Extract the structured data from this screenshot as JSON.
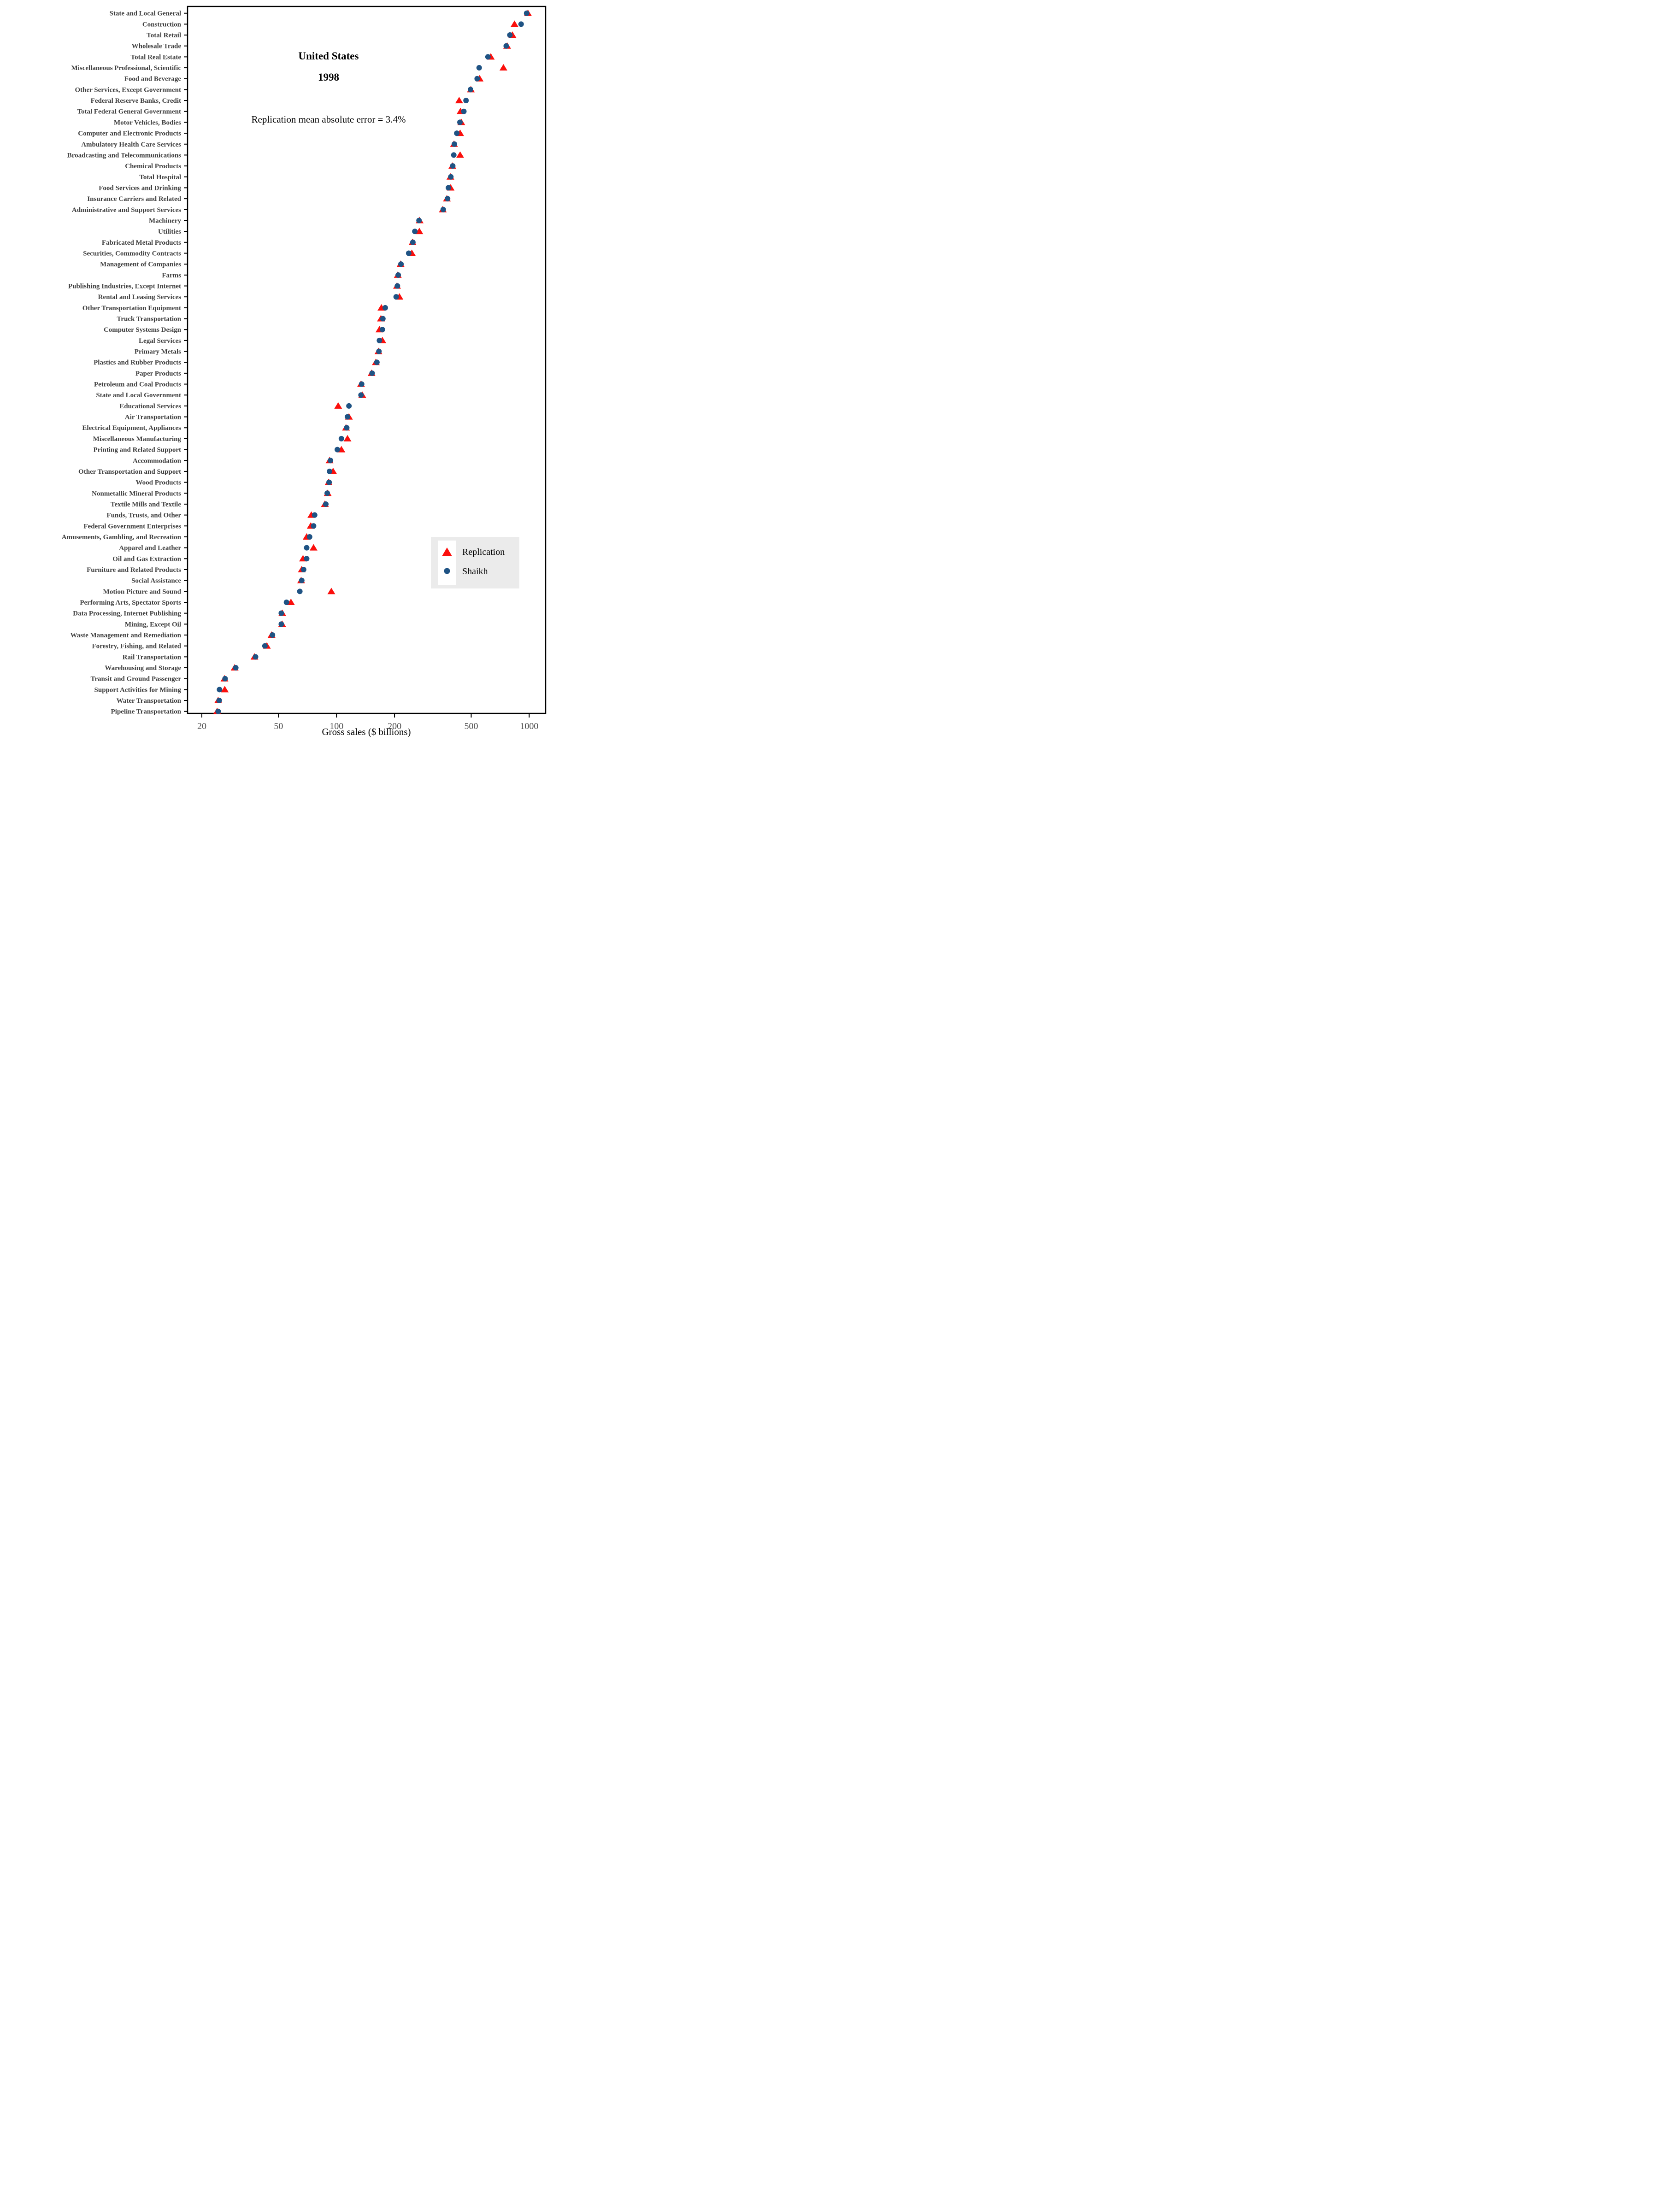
{
  "chart_data": {
    "type": "scatter",
    "title": "United States",
    "subtitle": "1998",
    "annotation": "Replication mean absolute error = 3.4%",
    "xlabel": "Gross sales ($ billions)",
    "x_scale": "log",
    "x_ticks": [
      20,
      50,
      100,
      200,
      500,
      1000
    ],
    "x_tick_labels": [
      "20",
      "50",
      "100",
      "200",
      "500",
      "1000"
    ],
    "x_range": [
      17,
      1220
    ],
    "grid": "off",
    "legend_position": "lower right",
    "categories": [
      "State and Local General",
      "Construction",
      "Total Retail",
      "Wholesale Trade",
      "Total Real Estate",
      "Miscellaneous Professional, Scientific",
      "Food and Beverage",
      "Other Services, Except Government",
      "Federal Reserve Banks, Credit",
      "Total Federal General Government",
      "Motor Vehicles, Bodies",
      "Computer and Electronic Products",
      "Ambulatory Health Care Services",
      "Broadcasting and Telecommunications",
      "Chemical Products",
      "Total Hospital",
      "Food Services and Drinking",
      "Insurance Carriers and Related",
      "Administrative and Support Services",
      "Machinery",
      "Utilities",
      "Fabricated Metal Products",
      "Securities, Commodity Contracts",
      "Management of Companies",
      "Farms",
      "Publishing Industries, Except Internet",
      "Rental and Leasing Services",
      "Other Transportation Equipment",
      "Truck Transportation",
      "Computer Systems Design",
      "Legal Services",
      "Primary Metals",
      "Plastics and Rubber Products",
      "Paper Products",
      "Petroleum and Coal Products",
      "State and Local Government",
      "Educational Services",
      "Air Transportation",
      "Electrical Equipment, Appliances",
      "Miscellaneous Manufacturing",
      "Printing and Related Support",
      "Accommodation",
      "Other Transportation and Support",
      "Wood Products",
      "Nonmetallic Mineral Products",
      "Textile Mills and Textile",
      "Funds, Trusts, and Other",
      "Federal Government Enterprises",
      "Amusements, Gambling, and Recreation",
      "Apparel and Leather",
      "Oil and Gas Extraction",
      "Furniture and Related Products",
      "Social Assistance",
      "Motion Picture and Sound",
      "Performing Arts, Spectator Sports",
      "Data Processing, Internet Publishing",
      "Mining, Except Oil",
      "Waste Management and Remediation",
      "Forestry, Fishing, and Related",
      "Rail Transportation",
      "Warehousing and Storage",
      "Transit and Ground Passenger",
      "Support Activities for Mining",
      "Water Transportation",
      "Pipeline Transportation"
    ],
    "series": [
      {
        "name": "Replication",
        "marker": "triangle",
        "color": "#fb0f0c",
        "values": [
          985,
          839,
          818,
          768,
          632,
          735,
          553,
          498,
          433,
          440,
          444,
          438,
          407,
          438,
          399,
          390,
          391,
          374,
          356,
          270,
          269,
          248,
          246,
          215,
          208,
          206,
          212,
          171,
          170,
          167,
          173,
          165,
          160,
          152,
          134,
          136,
          102,
          116,
          112,
          114,
          106,
          92,
          96,
          91,
          90,
          87,
          74,
          73.5,
          70,
          76,
          67,
          66,
          65.5,
          94,
          58,
          52.3,
          52.2,
          46,
          43.5,
          37.5,
          29.6,
          26.2,
          26.3,
          24.3,
          24
        ]
      },
      {
        "name": "Shaikh",
        "marker": "circle",
        "color": "#1f5384",
        "values": [
          970,
          908,
          794,
          760,
          611,
          550,
          537,
          496,
          470,
          458,
          437,
          421,
          409,
          406,
          401,
          392,
          381,
          377,
          358,
          268,
          255,
          249,
          237,
          216,
          209,
          207,
          204,
          179,
          174,
          173,
          167,
          166,
          162,
          153,
          135,
          134,
          116,
          114,
          113,
          106,
          101,
          93,
          92,
          91.5,
          89.5,
          88,
          77,
          76,
          72.5,
          70,
          70,
          67.5,
          66,
          64.5,
          55,
          51.7,
          51.7,
          46.5,
          42.5,
          38,
          30,
          26.4,
          24.7,
          24.6,
          24.3
        ]
      }
    ],
    "colors": {
      "axis": "#000000",
      "category_labels": "#3f3f3f",
      "tick_labels": "#4d4d4d",
      "legend_background": "#ebebeb",
      "legend_key_background": "#ffffff"
    }
  }
}
